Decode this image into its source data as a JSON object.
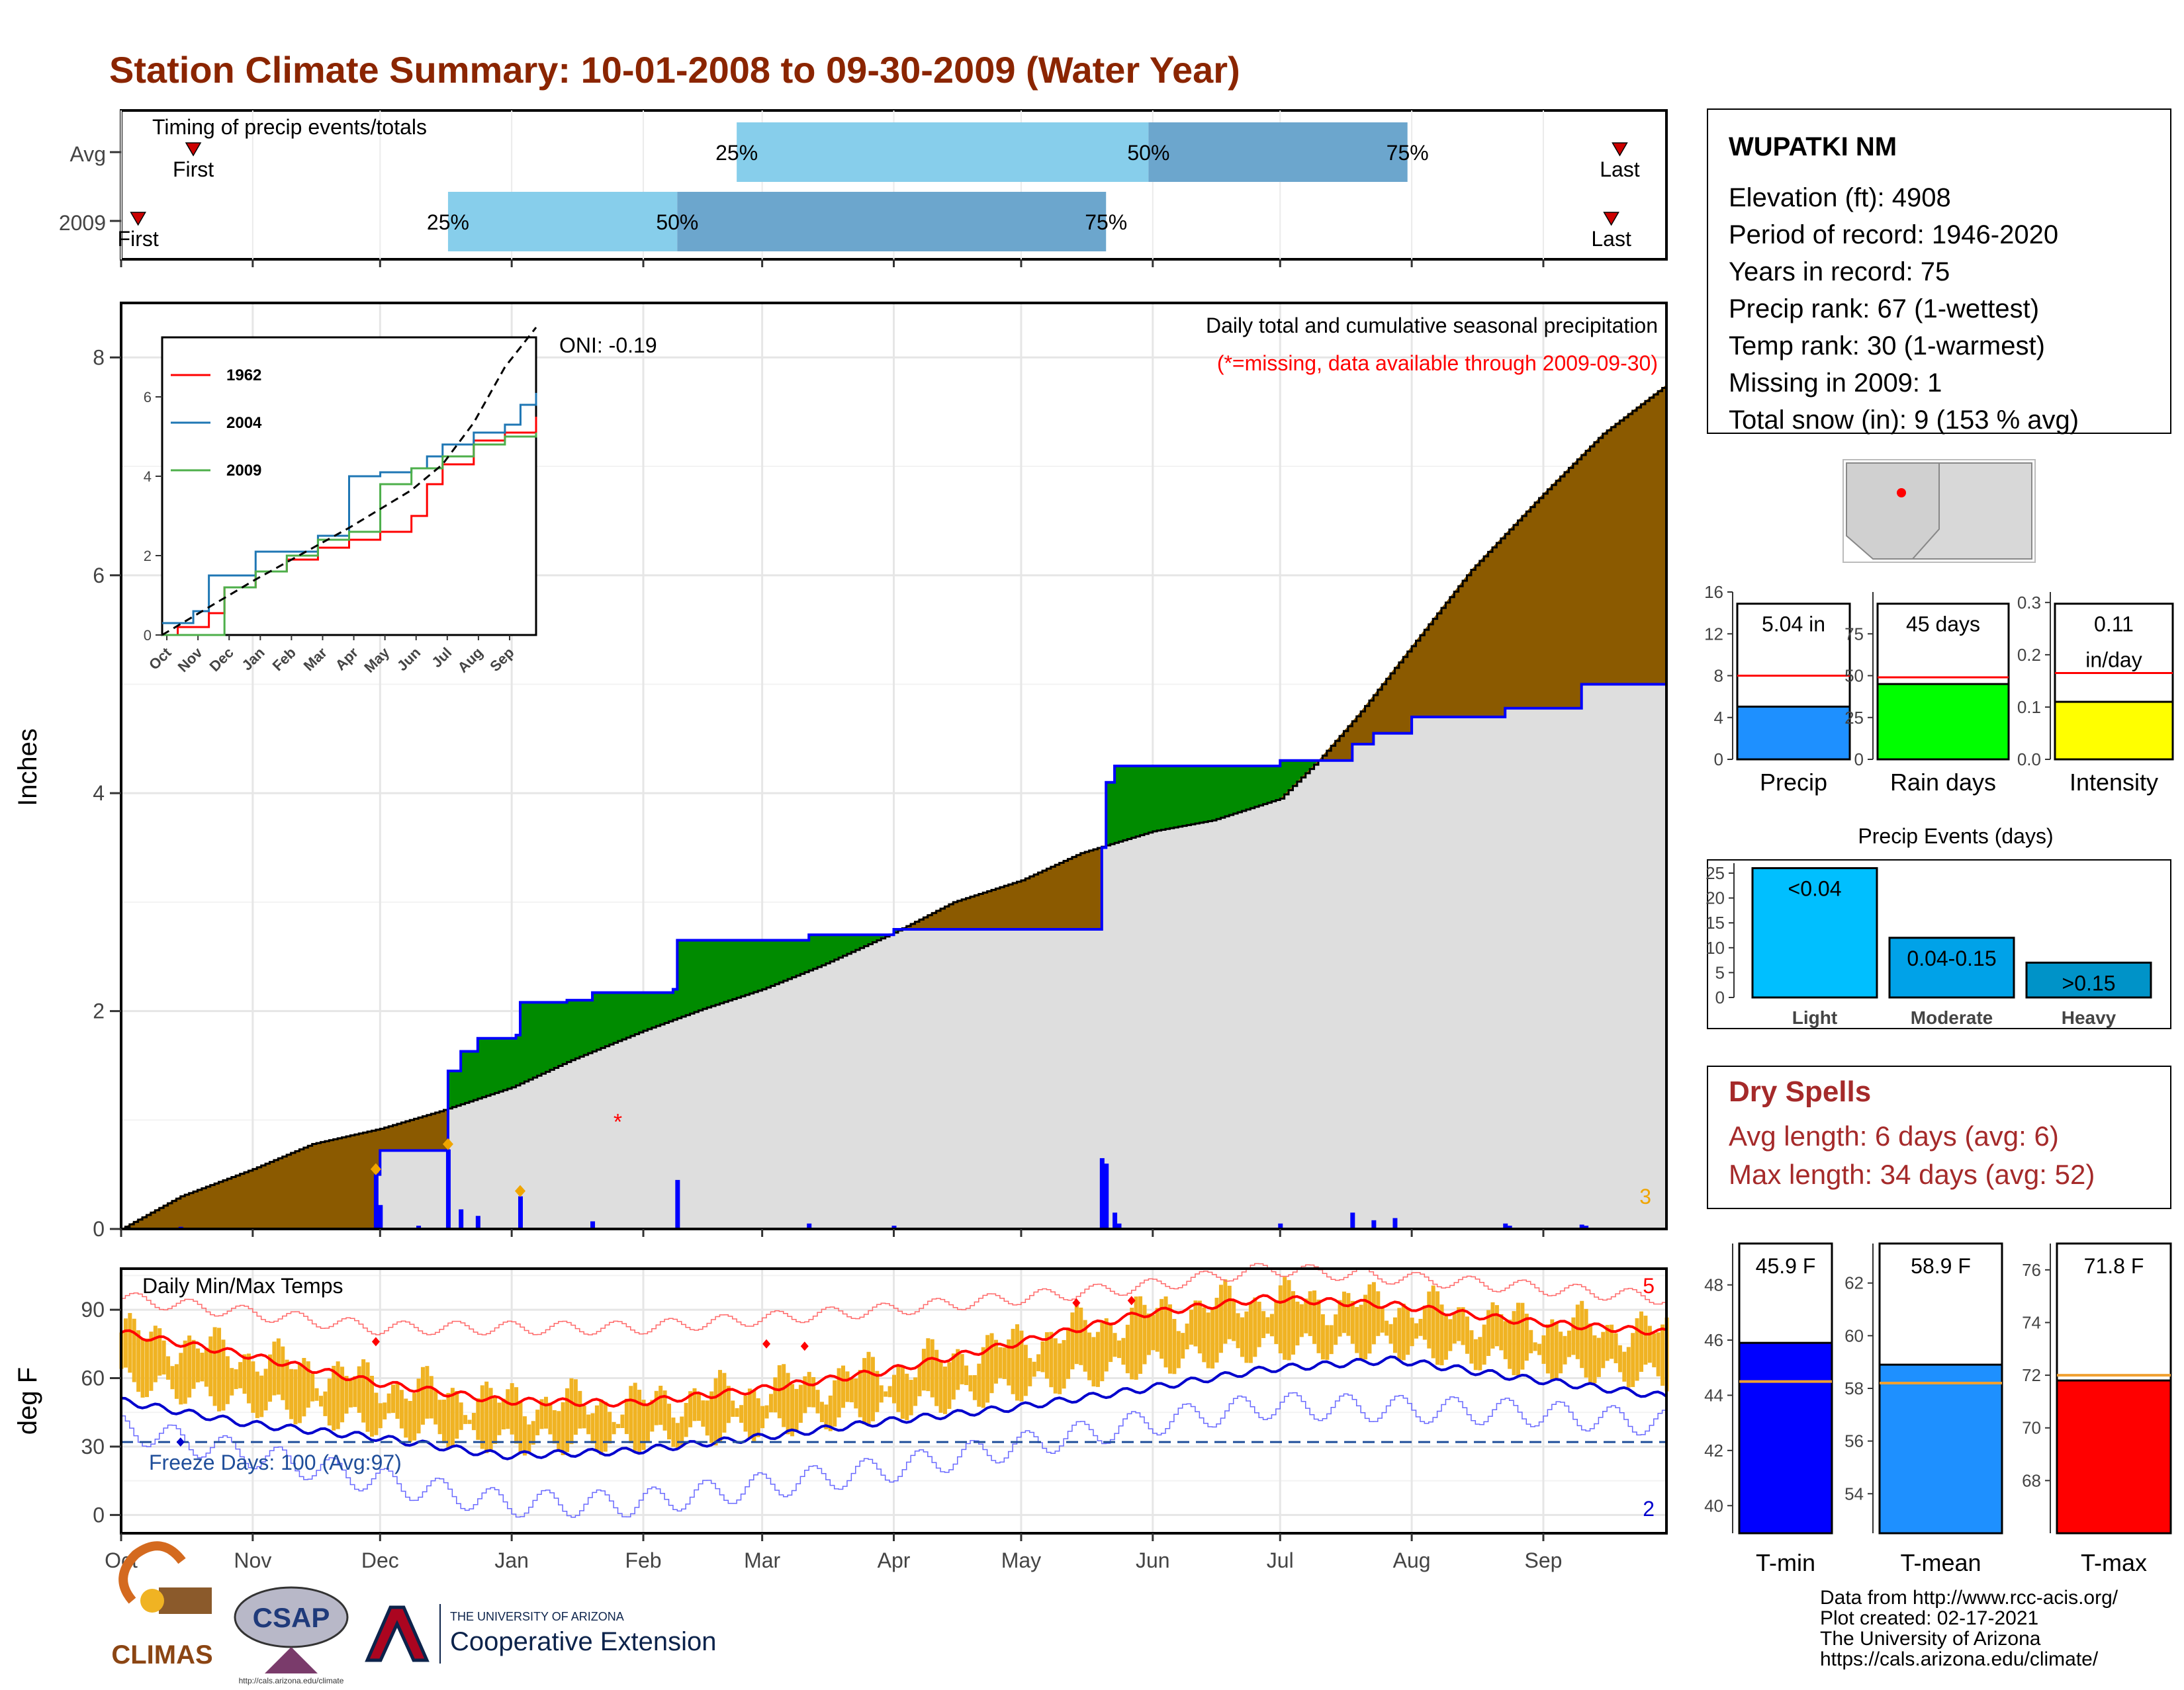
{
  "title": "Station Climate Summary: 10-01-2008 to 09-30-2009 (Water Year)",
  "colors": {
    "title": "#8B2500",
    "cum_area_above": "#8B5A00",
    "cum_area_below_wet": "#008B00",
    "cum_fill": "#DEDEDE",
    "cum_line": "#0000FF",
    "q_light": "#87CEEB",
    "q_dark": "#6CA6CD",
    "tmax_bar": "#F0B323",
    "tmax_avg": "#FF0000",
    "tmin_avg": "#0000CD",
    "precip_bar": "#1E90FF",
    "rain_bar": "#00FF00",
    "intensity_bar": "#FFFF00",
    "dry_spell": "#A52A2A"
  },
  "timing": {
    "label": "Timing of precip events/totals",
    "rows": [
      "Avg",
      "2009"
    ],
    "first_label": "First",
    "last_label": "Last",
    "pct_labels": [
      "25%",
      "50%",
      "75%"
    ]
  },
  "chart_data": [
    {
      "id": "timing",
      "type": "bar",
      "rows": [
        {
          "name": "Avg",
          "first": "2008-10-18",
          "q25": "2009-02-23",
          "q50": "2009-05-31",
          "q75": "2009-07-31",
          "last": "2009-09-19"
        },
        {
          "name": "2009",
          "first": "2008-10-05",
          "q25": "2008-12-17",
          "q50": "2009-02-09",
          "q75": "2009-05-21",
          "last": "2009-09-17"
        }
      ]
    },
    {
      "id": "precip",
      "type": "area",
      "title": "Daily total and cumulative seasonal precipitation",
      "subtitle": "(*=missing, data available through 2009-09-30)",
      "annotation": "ONI: -0.19",
      "ylabel": "Inches",
      "ylim": [
        0,
        8.5
      ],
      "yticks": [
        0,
        2,
        4,
        6,
        8
      ],
      "xticks": [
        "Oct",
        "Nov",
        "Dec",
        "Jan",
        "Feb",
        "Mar",
        "Apr",
        "May",
        "Jun",
        "Jul",
        "Aug",
        "Sep"
      ],
      "corner_count": "3",
      "missing_marker": {
        "date": "2009-01-26",
        "value": 1.0
      },
      "avg_cumulative": [
        [
          "2008-10-01",
          0
        ],
        [
          "2008-10-15",
          0.3
        ],
        [
          "2008-11-01",
          0.55
        ],
        [
          "2008-11-15",
          0.78
        ],
        [
          "2008-12-01",
          0.92
        ],
        [
          "2008-12-15",
          1.08
        ],
        [
          "2009-01-01",
          1.3
        ],
        [
          "2009-01-15",
          1.55
        ],
        [
          "2009-02-01",
          1.82
        ],
        [
          "2009-02-15",
          2.02
        ],
        [
          "2009-03-01",
          2.2
        ],
        [
          "2009-03-15",
          2.42
        ],
        [
          "2009-04-01",
          2.72
        ],
        [
          "2009-04-15",
          3.0
        ],
        [
          "2009-05-01",
          3.2
        ],
        [
          "2009-05-15",
          3.45
        ],
        [
          "2009-06-01",
          3.65
        ],
        [
          "2009-06-15",
          3.75
        ],
        [
          "2009-07-01",
          3.95
        ],
        [
          "2009-07-10",
          4.3
        ],
        [
          "2009-07-20",
          4.75
        ],
        [
          "2009-08-01",
          5.35
        ],
        [
          "2009-08-15",
          6.05
        ],
        [
          "2009-09-01",
          6.75
        ],
        [
          "2009-09-15",
          7.3
        ],
        [
          "2009-09-30",
          7.75
        ]
      ],
      "cumulative_2009": [
        [
          "2008-10-01",
          0
        ],
        [
          "2008-11-29",
          0
        ],
        [
          "2008-11-30",
          0.5
        ],
        [
          "2008-12-01",
          0.72
        ],
        [
          "2008-12-16",
          0.72
        ],
        [
          "2008-12-17",
          1.45
        ],
        [
          "2008-12-20",
          1.63
        ],
        [
          "2008-12-24",
          1.75
        ],
        [
          "2009-01-02",
          1.78
        ],
        [
          "2009-01-03",
          2.08
        ],
        [
          "2009-01-14",
          2.1
        ],
        [
          "2009-01-20",
          2.17
        ],
        [
          "2009-02-08",
          2.2
        ],
        [
          "2009-02-09",
          2.65
        ],
        [
          "2009-03-04",
          2.65
        ],
        [
          "2009-03-12",
          2.7
        ],
        [
          "2009-04-01",
          2.75
        ],
        [
          "2009-05-19",
          2.75
        ],
        [
          "2009-05-20",
          3.5
        ],
        [
          "2009-05-21",
          4.1
        ],
        [
          "2009-05-23",
          4.25
        ],
        [
          "2009-06-30",
          4.25
        ],
        [
          "2009-07-01",
          4.3
        ],
        [
          "2009-07-18",
          4.45
        ],
        [
          "2009-07-23",
          4.55
        ],
        [
          "2009-08-01",
          4.7
        ],
        [
          "2009-08-23",
          4.78
        ],
        [
          "2009-09-10",
          5.0
        ],
        [
          "2009-09-30",
          5.04
        ]
      ],
      "daily_2009": [
        [
          "2008-10-15",
          0.02
        ],
        [
          "2008-11-30",
          0.5
        ],
        [
          "2008-12-01",
          0.22
        ],
        [
          "2008-12-10",
          0.03
        ],
        [
          "2008-12-17",
          0.73
        ],
        [
          "2008-12-20",
          0.18
        ],
        [
          "2008-12-24",
          0.12
        ],
        [
          "2009-01-03",
          0.3
        ],
        [
          "2009-01-20",
          0.07
        ],
        [
          "2009-02-09",
          0.45
        ],
        [
          "2009-03-12",
          0.05
        ],
        [
          "2009-04-01",
          0.03
        ],
        [
          "2009-05-20",
          0.65
        ],
        [
          "2009-05-21",
          0.6
        ],
        [
          "2009-05-23",
          0.15
        ],
        [
          "2009-05-24",
          0.05
        ],
        [
          "2009-07-01",
          0.05
        ],
        [
          "2009-07-18",
          0.15
        ],
        [
          "2009-07-23",
          0.08
        ],
        [
          "2009-07-28",
          0.1
        ],
        [
          "2009-08-23",
          0.05
        ],
        [
          "2009-08-24",
          0.03
        ],
        [
          "2009-09-10",
          0.04
        ],
        [
          "2009-09-11",
          0.03
        ]
      ]
    },
    {
      "id": "inset",
      "type": "line",
      "x_ticks": [
        "Oct",
        "Nov",
        "Dec",
        "Jan",
        "Feb",
        "Mar",
        "Apr",
        "May",
        "Jun",
        "Jul",
        "Aug",
        "Sep"
      ],
      "y_ticks": [
        0,
        2,
        4,
        6
      ],
      "ylim": [
        0,
        7.5
      ],
      "series": [
        {
          "name": "1962",
          "color": "#FF0000",
          "points": [
            [
              0,
              0
            ],
            [
              0.5,
              0.2
            ],
            [
              1.5,
              0.55
            ],
            [
              2,
              1.2
            ],
            [
              3,
              1.6
            ],
            [
              4,
              1.9
            ],
            [
              5,
              2.2
            ],
            [
              6,
              2.4
            ],
            [
              7,
              2.6
            ],
            [
              8,
              3.0
            ],
            [
              8.5,
              3.8
            ],
            [
              9,
              4.3
            ],
            [
              10,
              4.9
            ],
            [
              11,
              5.1
            ],
            [
              12,
              5.5
            ]
          ]
        },
        {
          "name": "2004",
          "color": "#1F77B4",
          "points": [
            [
              0,
              0.3
            ],
            [
              1,
              0.6
            ],
            [
              1.5,
              1.5
            ],
            [
              3,
              2.1
            ],
            [
              5,
              2.5
            ],
            [
              6,
              4.0
            ],
            [
              7,
              4.1
            ],
            [
              8,
              4.2
            ],
            [
              8.5,
              4.5
            ],
            [
              9,
              4.8
            ],
            [
              10,
              5.1
            ],
            [
              11,
              5.3
            ],
            [
              11.5,
              5.8
            ],
            [
              12,
              6.1
            ]
          ]
        },
        {
          "name": "2009",
          "color": "#4DAF4A",
          "points": [
            [
              0,
              0
            ],
            [
              1,
              0
            ],
            [
              2,
              1.2
            ],
            [
              3,
              1.6
            ],
            [
              4,
              2.0
            ],
            [
              5,
              2.4
            ],
            [
              6,
              2.6
            ],
            [
              7,
              3.8
            ],
            [
              8,
              4.2
            ],
            [
              9,
              4.5
            ],
            [
              10,
              4.8
            ],
            [
              11,
              5.0
            ],
            [
              12,
              5.1
            ]
          ]
        }
      ],
      "avg": [
        [
          0,
          0
        ],
        [
          3,
          1.4
        ],
        [
          6,
          2.7
        ],
        [
          8,
          3.65
        ],
        [
          9,
          4.3
        ],
        [
          10,
          5.35
        ],
        [
          11,
          6.75
        ],
        [
          12,
          7.75
        ]
      ]
    },
    {
      "id": "temps",
      "type": "line",
      "title": "Daily Min/Max Temps",
      "ylabel": "deg F",
      "ylim": [
        -8,
        108
      ],
      "yticks": [
        0,
        30,
        60,
        90
      ],
      "freeze_line": 32,
      "freeze_label": "Freeze Days: 100 (Avg:97)",
      "corner_high": "5",
      "corner_low": "2",
      "xticks": [
        "Oct",
        "Nov",
        "Dec",
        "Jan",
        "Feb",
        "Mar",
        "Apr",
        "May",
        "Jun",
        "Jul",
        "Aug",
        "Sep"
      ],
      "avg_max": [
        [
          0,
          80
        ],
        [
          30,
          70
        ],
        [
          60,
          58
        ],
        [
          90,
          50
        ],
        [
          120,
          49
        ],
        [
          150,
          55
        ],
        [
          180,
          63
        ],
        [
          210,
          75
        ],
        [
          240,
          88
        ],
        [
          270,
          95
        ],
        [
          300,
          92
        ],
        [
          330,
          85
        ],
        [
          364,
          80
        ]
      ],
      "avg_min": [
        [
          0,
          50
        ],
        [
          30,
          40
        ],
        [
          60,
          34
        ],
        [
          90,
          26
        ],
        [
          120,
          28
        ],
        [
          150,
          34
        ],
        [
          180,
          41
        ],
        [
          210,
          47
        ],
        [
          240,
          55
        ],
        [
          270,
          64
        ],
        [
          300,
          68
        ],
        [
          330,
          60
        ],
        [
          364,
          52
        ]
      ],
      "rec_max": [
        [
          0,
          95
        ],
        [
          60,
          82
        ],
        [
          120,
          82
        ],
        [
          180,
          90
        ],
        [
          240,
          100
        ],
        [
          270,
          108
        ],
        [
          330,
          100
        ],
        [
          364,
          95
        ]
      ],
      "rec_min": [
        [
          0,
          38
        ],
        [
          60,
          15
        ],
        [
          90,
          5
        ],
        [
          120,
          5
        ],
        [
          180,
          20
        ],
        [
          240,
          40
        ],
        [
          270,
          48
        ],
        [
          330,
          45
        ],
        [
          364,
          40
        ]
      ]
    },
    {
      "id": "bars_precip",
      "type": "bar",
      "label": "Precip",
      "value_label": "5.04 in",
      "value": 5.04,
      "avg": 8,
      "ylim": [
        0,
        16
      ],
      "yticks": [
        0,
        4,
        8,
        12,
        16
      ]
    },
    {
      "id": "bars_rain",
      "type": "bar",
      "label": "Rain days",
      "value_label": "45 days",
      "value": 45,
      "avg": 49,
      "ylim": [
        0,
        100
      ],
      "yticks": [
        0,
        25,
        50,
        75
      ]
    },
    {
      "id": "bars_int",
      "type": "bar",
      "label": "Intensity",
      "value_label": "0.11",
      "value_label2": "in/day",
      "value": 0.11,
      "avg": 0.165,
      "ylim": [
        0,
        0.32
      ],
      "yticks": [
        "0.0",
        "0.1",
        "0.2",
        "0.3"
      ]
    },
    {
      "id": "events",
      "type": "bar",
      "title": "Precip Events (days)",
      "categories": [
        "Light",
        "Moderate",
        "Heavy"
      ],
      "values": [
        26,
        12,
        7
      ],
      "labels": [
        "<0.04",
        "0.04-0.15",
        ">0.15"
      ],
      "bar_colors": [
        "#00BFFF",
        "#00A2E8",
        "#0093C8"
      ],
      "ylim": [
        0,
        27
      ],
      "yticks": [
        0,
        5,
        10,
        15,
        20,
        25
      ]
    },
    {
      "id": "tmin",
      "type": "bar",
      "label": "T-min",
      "value_label": "45.9 F",
      "value": 45.9,
      "avg": 44.5,
      "ylim": [
        39,
        49.5
      ],
      "yticks": [
        40,
        42,
        44,
        46,
        48
      ],
      "color": "#0000FF"
    },
    {
      "id": "tmean",
      "type": "bar",
      "label": "T-mean",
      "value_label": "58.9 F",
      "value": 58.9,
      "avg": 58.2,
      "ylim": [
        52.5,
        63.5
      ],
      "yticks": [
        54,
        56,
        58,
        60,
        62
      ],
      "color": "#1E90FF"
    },
    {
      "id": "tmax",
      "type": "bar",
      "label": "T-max",
      "value_label": "71.8 F",
      "value": 71.8,
      "avg": 72.0,
      "ylim": [
        66,
        77
      ],
      "yticks": [
        68,
        70,
        72,
        74,
        76
      ],
      "color": "#FF0000"
    }
  ],
  "station": {
    "name": "WUPATKI NM",
    "lines": [
      "Elevation (ft): 4908",
      "Period of record: 1946-2020",
      "Years in record: 75",
      "Precip rank: 67 (1-wettest)",
      "Temp rank: 30 (1-warmest)",
      "Missing in 2009: 1",
      "Total snow (in): 9 (153 % avg)"
    ]
  },
  "dry_spells": {
    "title": "Dry Spells",
    "avg": "Avg length: 6 days (avg: 6)",
    "max": "Max length: 34 days (avg: 52)"
  },
  "footer": {
    "lines": [
      "Data from http://www.rcc-acis.org/",
      "Plot created: 02-17-2021",
      "The University of Arizona",
      "https://cals.arizona.edu/climate/"
    ],
    "logo_climas": "CLIMAS",
    "logo_csap": "CSAP",
    "logo_csap_url": "http://cals.arizona.edu/climate",
    "ua_small": "THE UNIVERSITY OF ARIZONA",
    "ua_big": "Cooperative Extension"
  }
}
